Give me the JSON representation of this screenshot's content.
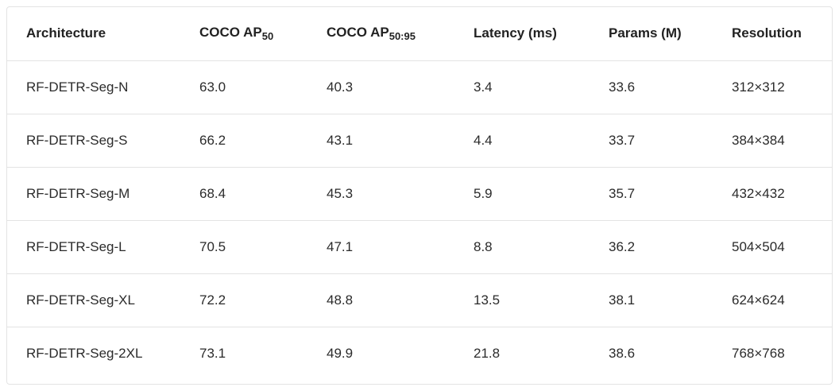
{
  "table": {
    "header": [
      {
        "text": "Architecture"
      },
      {
        "text": "COCO AP",
        "sub": "50"
      },
      {
        "text": "COCO AP",
        "sub": "50:95"
      },
      {
        "text": "Latency (ms)"
      },
      {
        "text": "Params (M)"
      },
      {
        "text": "Resolution"
      }
    ],
    "rows": [
      [
        "RF-DETR-Seg-N",
        "63.0",
        "40.3",
        "3.4",
        "33.6",
        "312×312"
      ],
      [
        "RF-DETR-Seg-S",
        "66.2",
        "43.1",
        "4.4",
        "33.7",
        "384×384"
      ],
      [
        "RF-DETR-Seg-M",
        "68.4",
        "45.3",
        "5.9",
        "35.7",
        "432×432"
      ],
      [
        "RF-DETR-Seg-L",
        "70.5",
        "47.1",
        "8.8",
        "36.2",
        "504×504"
      ],
      [
        "RF-DETR-Seg-XL",
        "72.2",
        "48.8",
        "13.5",
        "38.1",
        "624×624"
      ],
      [
        "RF-DETR-Seg-2XL",
        "73.1",
        "49.9",
        "21.8",
        "38.6",
        "768×768"
      ]
    ]
  }
}
